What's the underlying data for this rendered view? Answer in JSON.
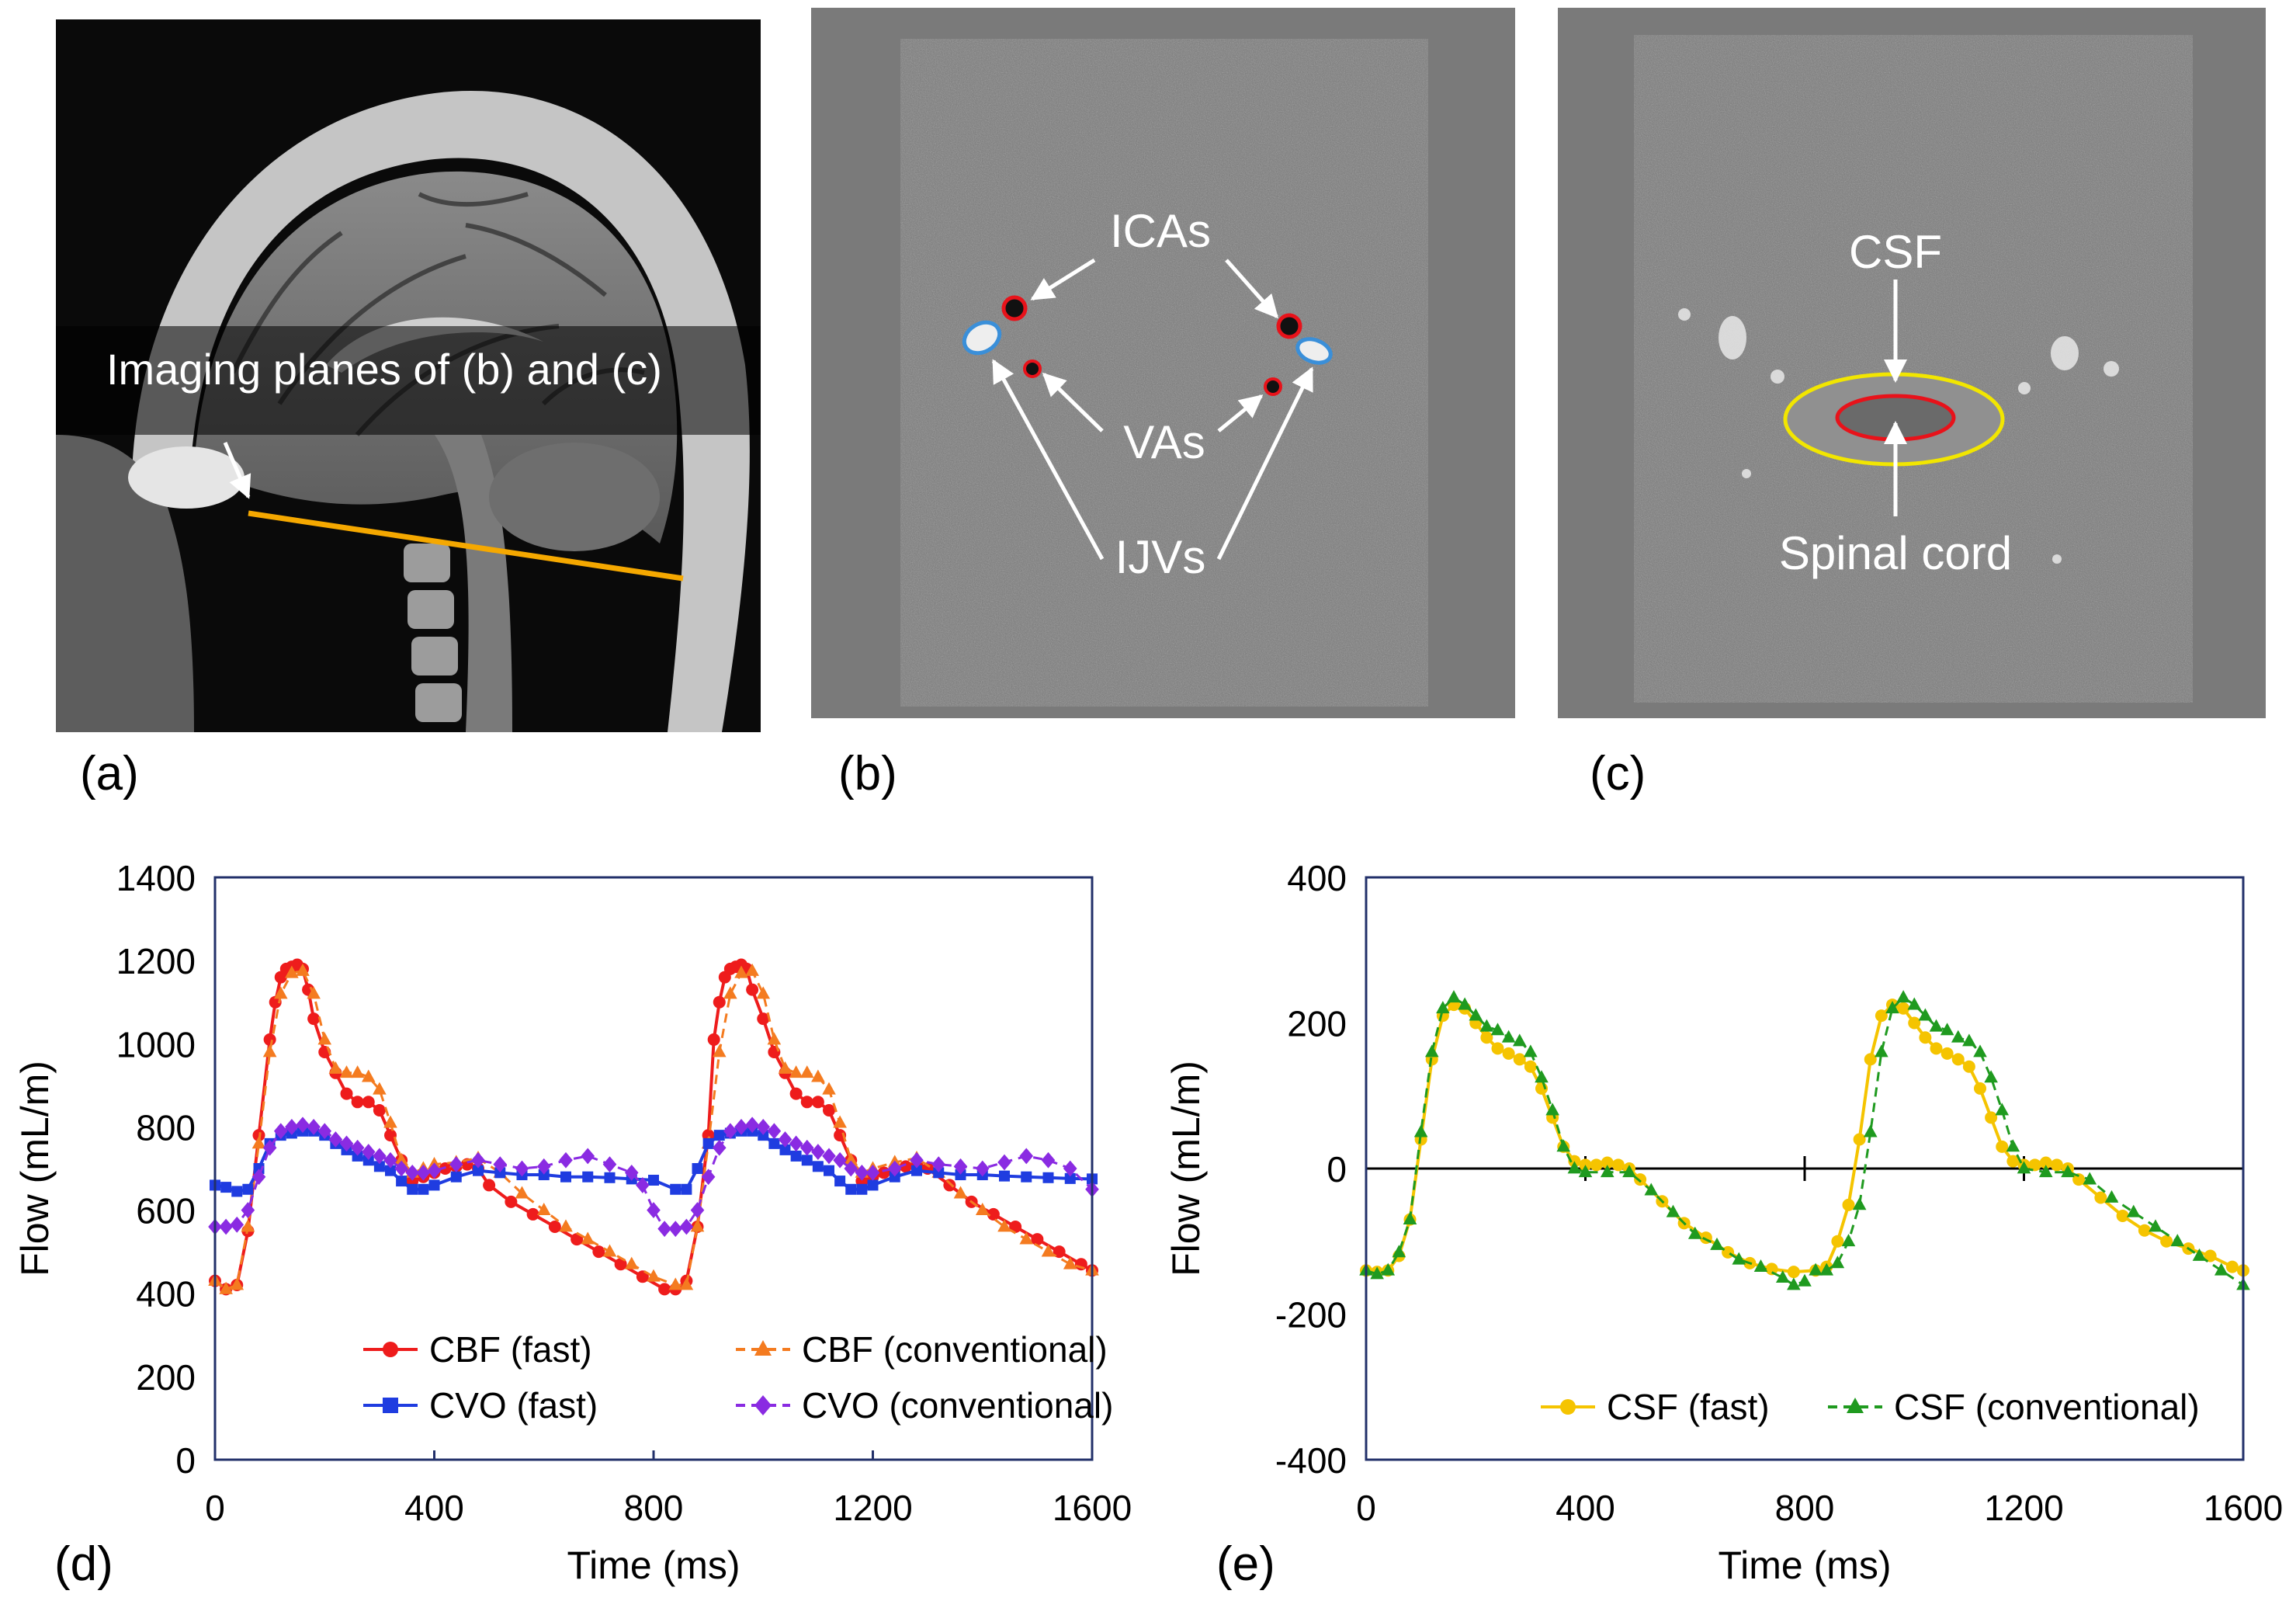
{
  "panel_labels": {
    "a": "(a)",
    "b": "(b)",
    "c": "(c)",
    "d": "(d)",
    "e": "(e)"
  },
  "mri": {
    "sagittal_label": "Imaging planes of (b) and (c)",
    "vessel_labels": {
      "icas": "ICAs",
      "vas": "VAs",
      "ijvs": "IJVs"
    },
    "csf_labels": {
      "csf": "CSF",
      "spinal_cord": "Spinal cord"
    }
  },
  "colors": {
    "cbf_fast": "#ee1c1c",
    "cbf_conventional": "#f47b20",
    "cvo_fast": "#1f3ce0",
    "cvo_conventional": "#8a2be2",
    "csf_fast": "#f5c400",
    "csf_conventional": "#1f9a1f",
    "plane_line": "#f5a800",
    "vessel_artery": "#e8121a",
    "vessel_vein": "#3a8fd9",
    "frame": "#22306a"
  },
  "chart_data": [
    {
      "type": "line",
      "title": "",
      "xlabel": "Time (ms)",
      "ylabel": "Flow (mL/m)",
      "xlim": [
        0,
        1600
      ],
      "ylim": [
        0,
        1400
      ],
      "xticks": [
        0,
        400,
        800,
        1200,
        1600
      ],
      "yticks": [
        0,
        200,
        400,
        600,
        800,
        1000,
        1200,
        1400
      ],
      "legend_position": "bottom-right",
      "series": [
        {
          "name": "CBF (fast)",
          "marker": "circle",
          "dashed": false,
          "color_key": "cbf_fast",
          "x": [
            0,
            20,
            40,
            60,
            80,
            100,
            110,
            120,
            130,
            140,
            150,
            160,
            170,
            180,
            200,
            220,
            240,
            260,
            280,
            300,
            320,
            340,
            360,
            380,
            400,
            420,
            440,
            460,
            480,
            500,
            540,
            580,
            620,
            660,
            700,
            740,
            780,
            820,
            840,
            860,
            880,
            900,
            910,
            920,
            930,
            940,
            950,
            960,
            970,
            980,
            1000,
            1020,
            1040,
            1060,
            1080,
            1100,
            1120,
            1140,
            1160,
            1180,
            1200,
            1220,
            1240,
            1260,
            1280,
            1300,
            1340,
            1380,
            1420,
            1460,
            1500,
            1540,
            1580,
            1600
          ],
          "y": [
            430,
            410,
            420,
            550,
            780,
            1010,
            1100,
            1160,
            1180,
            1185,
            1190,
            1180,
            1130,
            1060,
            980,
            930,
            880,
            860,
            860,
            840,
            780,
            720,
            670,
            680,
            690,
            700,
            705,
            710,
            700,
            660,
            620,
            590,
            560,
            530,
            500,
            470,
            440,
            410,
            410,
            430,
            560,
            780,
            1010,
            1100,
            1160,
            1180,
            1185,
            1190,
            1180,
            1130,
            1060,
            980,
            930,
            880,
            860,
            860,
            840,
            780,
            720,
            670,
            680,
            690,
            700,
            705,
            710,
            700,
            660,
            620,
            590,
            560,
            530,
            500,
            470,
            455
          ]
        },
        {
          "name": "CBF (conventional)",
          "marker": "triangle",
          "dashed": true,
          "color_key": "cbf_conventional",
          "x": [
            0,
            20,
            40,
            60,
            80,
            100,
            120,
            140,
            160,
            180,
            200,
            220,
            240,
            260,
            280,
            300,
            320,
            340,
            360,
            380,
            400,
            440,
            480,
            520,
            560,
            600,
            640,
            680,
            720,
            760,
            800,
            840,
            860,
            880,
            900,
            920,
            940,
            960,
            980,
            1000,
            1020,
            1040,
            1060,
            1080,
            1100,
            1120,
            1140,
            1160,
            1180,
            1200,
            1240,
            1280,
            1320,
            1360,
            1400,
            1440,
            1480,
            1520,
            1560,
            1600
          ],
          "y": [
            430,
            410,
            420,
            560,
            760,
            980,
            1120,
            1170,
            1175,
            1120,
            1010,
            940,
            930,
            930,
            920,
            890,
            810,
            720,
            690,
            700,
            710,
            715,
            725,
            690,
            640,
            600,
            560,
            530,
            500,
            470,
            440,
            420,
            420,
            560,
            760,
            980,
            1120,
            1170,
            1175,
            1120,
            1010,
            940,
            930,
            930,
            920,
            890,
            810,
            720,
            690,
            700,
            715,
            725,
            690,
            640,
            600,
            560,
            530,
            500,
            470,
            455
          ]
        },
        {
          "name": "CVO (fast)",
          "marker": "square",
          "dashed": false,
          "color_key": "cvo_fast",
          "x": [
            0,
            20,
            40,
            60,
            80,
            100,
            120,
            140,
            160,
            180,
            200,
            220,
            240,
            260,
            280,
            300,
            320,
            340,
            360,
            380,
            400,
            440,
            480,
            520,
            560,
            600,
            640,
            680,
            720,
            760,
            800,
            840,
            860,
            880,
            900,
            920,
            940,
            960,
            980,
            1000,
            1020,
            1040,
            1060,
            1080,
            1100,
            1120,
            1140,
            1160,
            1180,
            1200,
            1240,
            1280,
            1320,
            1360,
            1400,
            1440,
            1480,
            1520,
            1560,
            1600
          ],
          "y": [
            660,
            655,
            645,
            650,
            700,
            760,
            780,
            785,
            790,
            790,
            780,
            760,
            745,
            730,
            720,
            705,
            695,
            670,
            650,
            650,
            660,
            680,
            695,
            690,
            685,
            685,
            680,
            680,
            678,
            675,
            672,
            650,
            650,
            700,
            760,
            780,
            785,
            790,
            790,
            780,
            760,
            745,
            730,
            720,
            705,
            695,
            670,
            650,
            650,
            660,
            680,
            695,
            690,
            685,
            685,
            682,
            680,
            678,
            676,
            675
          ]
        },
        {
          "name": "CVO (conventional)",
          "marker": "diamond",
          "dashed": true,
          "color_key": "cvo_conventional",
          "x": [
            0,
            20,
            40,
            60,
            80,
            100,
            120,
            140,
            160,
            180,
            200,
            220,
            240,
            260,
            280,
            300,
            320,
            340,
            360,
            380,
            400,
            440,
            480,
            520,
            560,
            600,
            640,
            680,
            720,
            760,
            780,
            800,
            820,
            840,
            860,
            880,
            900,
            920,
            940,
            960,
            980,
            1000,
            1020,
            1040,
            1060,
            1080,
            1100,
            1120,
            1140,
            1160,
            1180,
            1200,
            1240,
            1280,
            1320,
            1360,
            1400,
            1440,
            1480,
            1520,
            1560,
            1600
          ],
          "y": [
            560,
            560,
            565,
            600,
            680,
            750,
            790,
            800,
            805,
            800,
            790,
            770,
            760,
            750,
            740,
            730,
            720,
            700,
            690,
            690,
            695,
            710,
            720,
            710,
            700,
            705,
            720,
            730,
            710,
            690,
            660,
            600,
            555,
            555,
            560,
            600,
            680,
            750,
            790,
            800,
            805,
            800,
            790,
            770,
            760,
            750,
            740,
            730,
            720,
            700,
            690,
            690,
            700,
            720,
            710,
            705,
            700,
            715,
            730,
            720,
            700,
            650
          ]
        }
      ]
    },
    {
      "type": "line",
      "title": "",
      "xlabel": "Time (ms)",
      "ylabel": "Flow (mL/m)",
      "xlim": [
        0,
        1600
      ],
      "ylim": [
        -400,
        400
      ],
      "xticks": [
        0,
        400,
        800,
        1200,
        1600
      ],
      "yticks": [
        -400,
        -200,
        0,
        200,
        400
      ],
      "legend_position": "bottom-right",
      "series": [
        {
          "name": "CSF (fast)",
          "marker": "circle",
          "dashed": false,
          "color_key": "csf_fast",
          "x": [
            0,
            20,
            40,
            60,
            80,
            100,
            120,
            140,
            160,
            180,
            200,
            220,
            240,
            260,
            280,
            300,
            320,
            340,
            360,
            380,
            400,
            420,
            440,
            460,
            480,
            500,
            540,
            580,
            620,
            660,
            700,
            740,
            780,
            820,
            840,
            860,
            880,
            900,
            920,
            940,
            960,
            980,
            1000,
            1020,
            1040,
            1060,
            1080,
            1100,
            1120,
            1140,
            1160,
            1180,
            1200,
            1220,
            1240,
            1260,
            1280,
            1300,
            1340,
            1380,
            1420,
            1460,
            1500,
            1540,
            1580,
            1600
          ],
          "y": [
            -140,
            -142,
            -140,
            -120,
            -70,
            40,
            150,
            210,
            225,
            220,
            200,
            180,
            165,
            158,
            150,
            140,
            110,
            70,
            30,
            10,
            5,
            5,
            8,
            5,
            0,
            -15,
            -45,
            -75,
            -95,
            -115,
            -130,
            -138,
            -142,
            -140,
            -135,
            -100,
            -50,
            40,
            150,
            210,
            225,
            220,
            200,
            180,
            165,
            158,
            150,
            140,
            110,
            70,
            30,
            10,
            5,
            5,
            8,
            5,
            0,
            -15,
            -40,
            -65,
            -85,
            -100,
            -110,
            -120,
            -135,
            -140
          ]
        },
        {
          "name": "CSF (conventional)",
          "marker": "triangle",
          "dashed": true,
          "color_key": "csf_conventional",
          "x": [
            0,
            20,
            40,
            60,
            80,
            100,
            120,
            140,
            160,
            180,
            200,
            220,
            240,
            260,
            280,
            300,
            320,
            340,
            360,
            380,
            400,
            440,
            480,
            520,
            560,
            600,
            640,
            680,
            720,
            760,
            780,
            800,
            820,
            840,
            860,
            880,
            900,
            920,
            940,
            960,
            980,
            1000,
            1020,
            1040,
            1060,
            1080,
            1100,
            1120,
            1140,
            1160,
            1180,
            1200,
            1240,
            1280,
            1320,
            1360,
            1400,
            1440,
            1480,
            1520,
            1560,
            1600
          ],
          "y": [
            -140,
            -145,
            -140,
            -115,
            -70,
            50,
            160,
            220,
            235,
            225,
            210,
            195,
            190,
            180,
            175,
            160,
            125,
            80,
            30,
            0,
            -5,
            -5,
            -5,
            -30,
            -60,
            -90,
            -105,
            -125,
            -135,
            -150,
            -160,
            -155,
            -140,
            -140,
            -130,
            -100,
            -50,
            50,
            160,
            220,
            235,
            225,
            210,
            195,
            190,
            180,
            175,
            160,
            125,
            80,
            30,
            0,
            -5,
            -5,
            -15,
            -40,
            -60,
            -80,
            -100,
            -120,
            -140,
            -160
          ]
        }
      ]
    }
  ]
}
